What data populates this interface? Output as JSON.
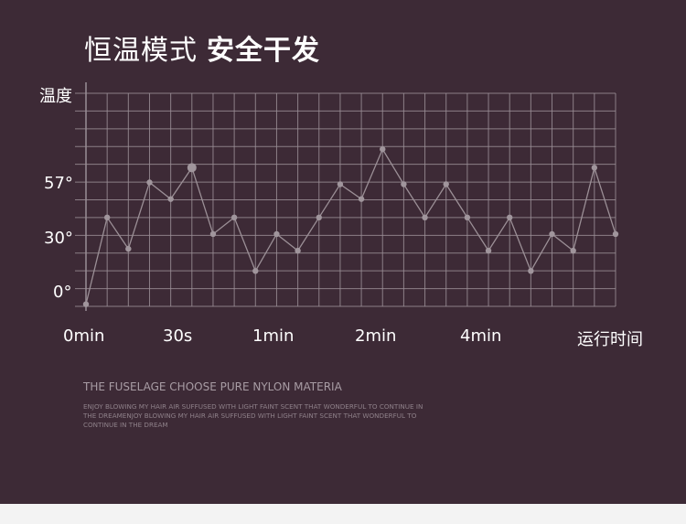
{
  "title": {
    "normal": "恒温模式",
    "bold": "安全干发"
  },
  "chart_data": {
    "type": "line",
    "ylabel": "温度",
    "xlabel": "运行时间",
    "y_ticks": [
      {
        "label": "57°",
        "value": 57
      },
      {
        "label": "30°",
        "value": 30
      },
      {
        "label": "0°",
        "value": 0
      }
    ],
    "x_ticks": [
      "0min",
      "30s",
      "1min",
      "2min",
      "4min"
    ],
    "grid": true,
    "constant_line": {
      "value": 57,
      "gradient_colors": [
        "#ffff33",
        "#ff9a1a",
        "#e8202a"
      ]
    },
    "series": [
      {
        "values": [
          -8,
          39,
          22,
          58,
          49,
          66,
          30,
          39,
          10,
          30,
          21,
          39,
          57,
          49,
          76,
          57,
          39,
          57,
          39,
          21,
          39,
          10,
          30,
          21,
          66,
          30
        ]
      }
    ]
  },
  "text_block": {
    "heading": "THE FUSELAGE CHOOSE PURE NYLON MATERIA",
    "body": "ENJOY BLOWING MY HAIR AIR SUFFUSED WITH LIGHT FAINT SCENT THAT WONDERFUL TO CONTINUE IN THE DREAMENJOY BLOWING MY HAIR AIR SUFFUSED WITH LIGHT FAINT SCENT THAT WONDERFUL TO CONTINUE IN THE DREAM"
  },
  "colors": {
    "background": "#3d2a36",
    "grid": "#9a8e96",
    "series_line": "#9b8f96",
    "footer": "#f3f3f3"
  }
}
